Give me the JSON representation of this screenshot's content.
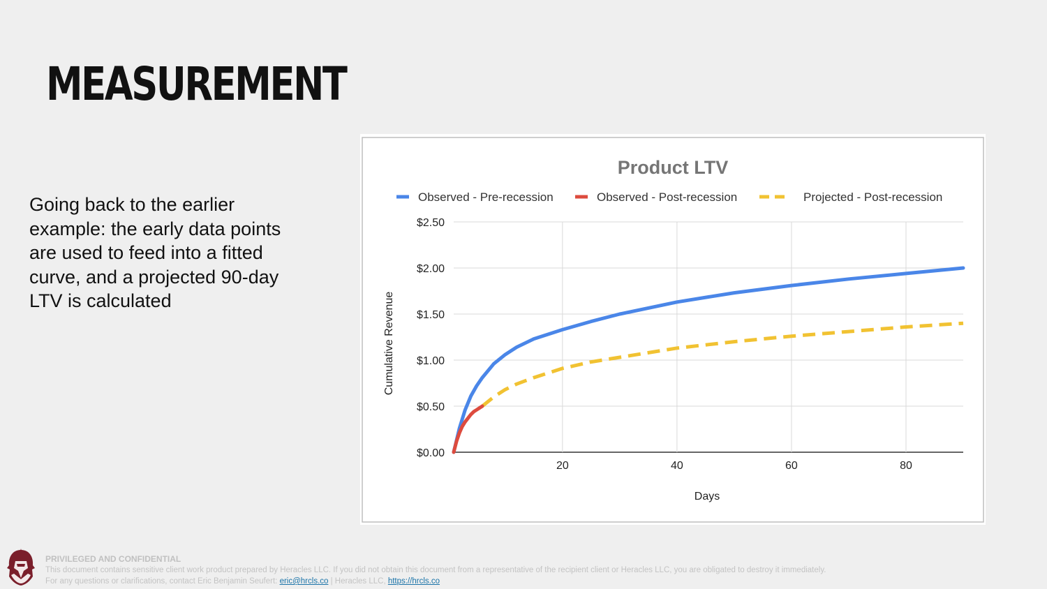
{
  "slide": {
    "title": "MEASUREMENT",
    "body": "Going back to the earlier example: the early data points are used to feed into a fitted curve, and a projected 90-day LTV is calculated"
  },
  "footer": {
    "confidential": "PRIVILEGED AND CONFIDENTIAL",
    "line1": "This document contains sensitive client work product prepared by Heracles LLC. If you did not obtain this document from a representative of the recipient client or Heracles LLC, you are obligated to destroy it immediately.",
    "line2_prefix": "For any questions or clarifications, contact Eric Benjamin Seufert: ",
    "email": "eric@hrcls.co",
    "line2_mid": " | Heracles LLC, ",
    "site": "https://hrcls.co",
    "logo_icon": "helmeted-warrior-logo-icon"
  },
  "chart_data": {
    "type": "line",
    "title": "Product LTV",
    "xlabel": "Days",
    "ylabel": "Cumulative Revenue",
    "xlim": [
      1,
      90
    ],
    "ylim": [
      0,
      2.5
    ],
    "x_ticks": [
      20,
      40,
      60,
      80
    ],
    "x_tick_labels": [
      "20",
      "40",
      "60",
      "80"
    ],
    "y_ticks": [
      0,
      0.5,
      1,
      1.5,
      2,
      2.5
    ],
    "y_tick_labels": [
      "$0.00",
      "$0.50",
      "$1.00",
      "$1.50",
      "$2.00",
      "$2.50"
    ],
    "grid": true,
    "legend": "top",
    "series": [
      {
        "name": "Observed - Pre-recession",
        "color": "#4a86e8",
        "style": "solid",
        "x": [
          1,
          2,
          3,
          4,
          5,
          6,
          8,
          10,
          12,
          15,
          20,
          25,
          30,
          40,
          50,
          60,
          70,
          80,
          90
        ],
        "y": [
          0,
          0.26,
          0.46,
          0.61,
          0.72,
          0.81,
          0.96,
          1.06,
          1.14,
          1.23,
          1.33,
          1.42,
          1.5,
          1.63,
          1.73,
          1.81,
          1.88,
          1.94,
          2.0
        ]
      },
      {
        "name": "Observed - Post-recession",
        "color": "#dd4b3e",
        "style": "solid",
        "x": [
          1,
          1.5,
          2,
          2.5,
          3,
          3.5,
          4,
          4.5,
          5,
          5.5,
          6
        ],
        "y": [
          0,
          0.12,
          0.21,
          0.28,
          0.33,
          0.37,
          0.41,
          0.44,
          0.46,
          0.48,
          0.5
        ]
      },
      {
        "name": "Projected - Post-recession",
        "color": "#f1c232",
        "style": "dashed",
        "x": [
          6,
          8,
          10,
          12,
          15,
          20,
          25,
          30,
          40,
          50,
          60,
          70,
          80,
          90
        ],
        "y": [
          0.5,
          0.6,
          0.68,
          0.74,
          0.81,
          0.91,
          0.98,
          1.03,
          1.13,
          1.2,
          1.26,
          1.31,
          1.36,
          1.4
        ]
      }
    ]
  }
}
